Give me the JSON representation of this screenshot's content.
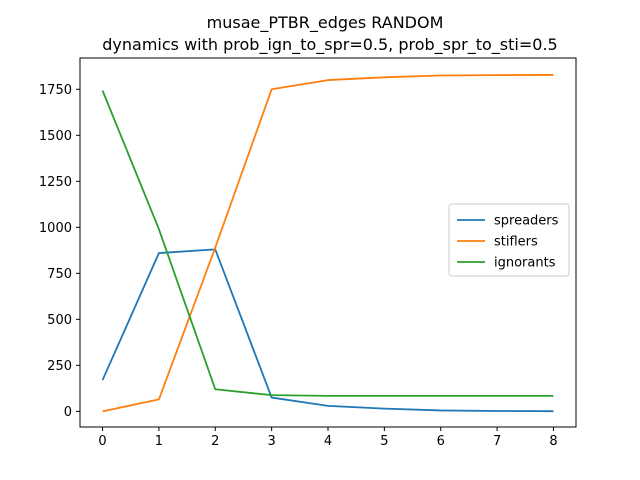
{
  "chart_data": {
    "type": "line",
    "title": "musae_PTBR_edges RANDOM",
    "subtitle": "dynamics with prob_ign_to_spr=0.5, prob_spr_to_sti=0.5",
    "xlabel": "",
    "ylabel": "",
    "x": [
      0,
      1,
      2,
      3,
      4,
      5,
      6,
      7,
      8
    ],
    "xlim": [
      -0.4,
      8.4
    ],
    "ylim": [
      -85,
      1920
    ],
    "xticks": [
      0,
      1,
      2,
      3,
      4,
      5,
      6,
      7,
      8
    ],
    "yticks": [
      0,
      250,
      500,
      750,
      1000,
      1250,
      1500,
      1750
    ],
    "grid": false,
    "legend_position": "center-right",
    "series": [
      {
        "name": "spreaders",
        "color": "#1f77b4",
        "values": [
          170,
          860,
          880,
          75,
          30,
          15,
          5,
          2,
          1
        ]
      },
      {
        "name": "stiflers",
        "color": "#ff7f0e",
        "values": [
          0,
          65,
          890,
          1750,
          1800,
          1815,
          1825,
          1827,
          1828
        ]
      },
      {
        "name": "ignorants",
        "color": "#2ca02c",
        "values": [
          1743,
          990,
          120,
          88,
          84,
          84,
          84,
          84,
          84
        ]
      }
    ]
  }
}
